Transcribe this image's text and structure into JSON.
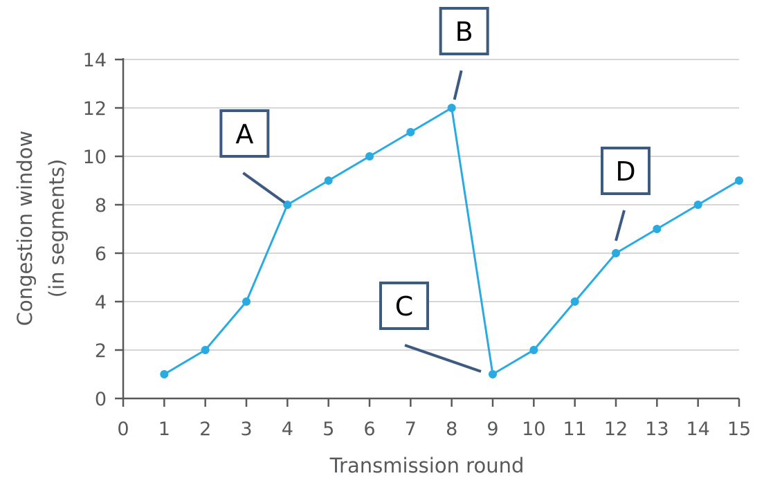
{
  "colors": {
    "series": "#29abe2",
    "axis": "#58595b",
    "grid": "#d6d6d6",
    "callout_border": "#3d5a80",
    "callout_text": "#000000"
  },
  "chart_data": {
    "type": "line",
    "xlabel": "Transmission round",
    "ylabel_lines": [
      "Congestion window",
      "(in segments)"
    ],
    "xlim": [
      0,
      15
    ],
    "ylim": [
      0,
      14
    ],
    "x_ticks": [
      0,
      1,
      2,
      3,
      4,
      5,
      6,
      7,
      8,
      9,
      10,
      11,
      12,
      13,
      14,
      15
    ],
    "y_ticks": [
      0,
      2,
      4,
      6,
      8,
      10,
      12,
      14
    ],
    "grid": "horizontal",
    "series": [
      {
        "x": [
          1,
          2,
          3,
          4,
          5,
          6,
          7,
          8,
          9,
          10,
          11,
          12,
          13,
          14,
          15
        ],
        "y": [
          1,
          2,
          4,
          8,
          9,
          10,
          11,
          12,
          1,
          2,
          4,
          6,
          7,
          8,
          9
        ]
      }
    ],
    "annotations": [
      {
        "label": "A",
        "x": 4,
        "y": 8
      },
      {
        "label": "B",
        "x": 8,
        "y": 12
      },
      {
        "label": "C",
        "x": 9,
        "y": 1
      },
      {
        "label": "D",
        "x": 12,
        "y": 6
      }
    ]
  }
}
